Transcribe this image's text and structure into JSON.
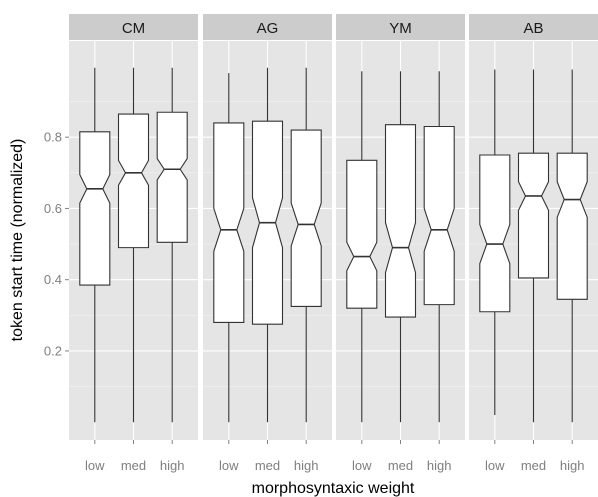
{
  "chart_data": {
    "type": "boxplot",
    "notched": true,
    "xlabel": "morphosyntaxic weight",
    "ylabel": "token start time (normalized)",
    "categories": [
      "low",
      "med",
      "high"
    ],
    "y_ticks": [
      0.2,
      0.4,
      0.6,
      0.8
    ],
    "y_tick_labels": [
      "0.2",
      "0.4",
      "0.6",
      "0.8"
    ],
    "ylim": [
      -0.05,
      1.07
    ],
    "grid": true,
    "panels": [
      {
        "facet": "CM",
        "boxes": [
          {
            "x": "low",
            "whisker_low": 0.0,
            "q1": 0.385,
            "median": 0.655,
            "q3": 0.815,
            "whisker_high": 0.995,
            "notch_low": 0.615,
            "notch_high": 0.695
          },
          {
            "x": "med",
            "whisker_low": 0.0,
            "q1": 0.49,
            "median": 0.7,
            "q3": 0.865,
            "whisker_high": 0.995,
            "notch_low": 0.665,
            "notch_high": 0.735
          },
          {
            "x": "high",
            "whisker_low": 0.0,
            "q1": 0.505,
            "median": 0.71,
            "q3": 0.87,
            "whisker_high": 0.995,
            "notch_low": 0.68,
            "notch_high": 0.74
          }
        ]
      },
      {
        "facet": "AG",
        "boxes": [
          {
            "x": "low",
            "whisker_low": 0.0,
            "q1": 0.28,
            "median": 0.54,
            "q3": 0.84,
            "whisker_high": 0.98,
            "notch_low": 0.48,
            "notch_high": 0.6
          },
          {
            "x": "med",
            "whisker_low": 0.0,
            "q1": 0.275,
            "median": 0.56,
            "q3": 0.845,
            "whisker_high": 0.995,
            "notch_low": 0.49,
            "notch_high": 0.63
          },
          {
            "x": "high",
            "whisker_low": 0.0,
            "q1": 0.325,
            "median": 0.555,
            "q3": 0.82,
            "whisker_high": 0.995,
            "notch_low": 0.495,
            "notch_high": 0.615
          }
        ]
      },
      {
        "facet": "YM",
        "boxes": [
          {
            "x": "low",
            "whisker_low": 0.0,
            "q1": 0.32,
            "median": 0.465,
            "q3": 0.735,
            "whisker_high": 0.985,
            "notch_low": 0.425,
            "notch_high": 0.505
          },
          {
            "x": "med",
            "whisker_low": 0.0,
            "q1": 0.295,
            "median": 0.49,
            "q3": 0.835,
            "whisker_high": 0.985,
            "notch_low": 0.42,
            "notch_high": 0.56
          },
          {
            "x": "high",
            "whisker_low": 0.0,
            "q1": 0.33,
            "median": 0.54,
            "q3": 0.83,
            "whisker_high": 0.985,
            "notch_low": 0.48,
            "notch_high": 0.6
          }
        ]
      },
      {
        "facet": "AB",
        "boxes": [
          {
            "x": "low",
            "whisker_low": 0.02,
            "q1": 0.31,
            "median": 0.5,
            "q3": 0.75,
            "whisker_high": 0.99,
            "notch_low": 0.445,
            "notch_high": 0.555
          },
          {
            "x": "med",
            "whisker_low": 0.0,
            "q1": 0.405,
            "median": 0.635,
            "q3": 0.755,
            "whisker_high": 0.99,
            "notch_low": 0.595,
            "notch_high": 0.675
          },
          {
            "x": "high",
            "whisker_low": 0.0,
            "q1": 0.345,
            "median": 0.625,
            "q3": 0.755,
            "whisker_high": 0.99,
            "notch_low": 0.575,
            "notch_high": 0.675
          }
        ]
      }
    ]
  }
}
